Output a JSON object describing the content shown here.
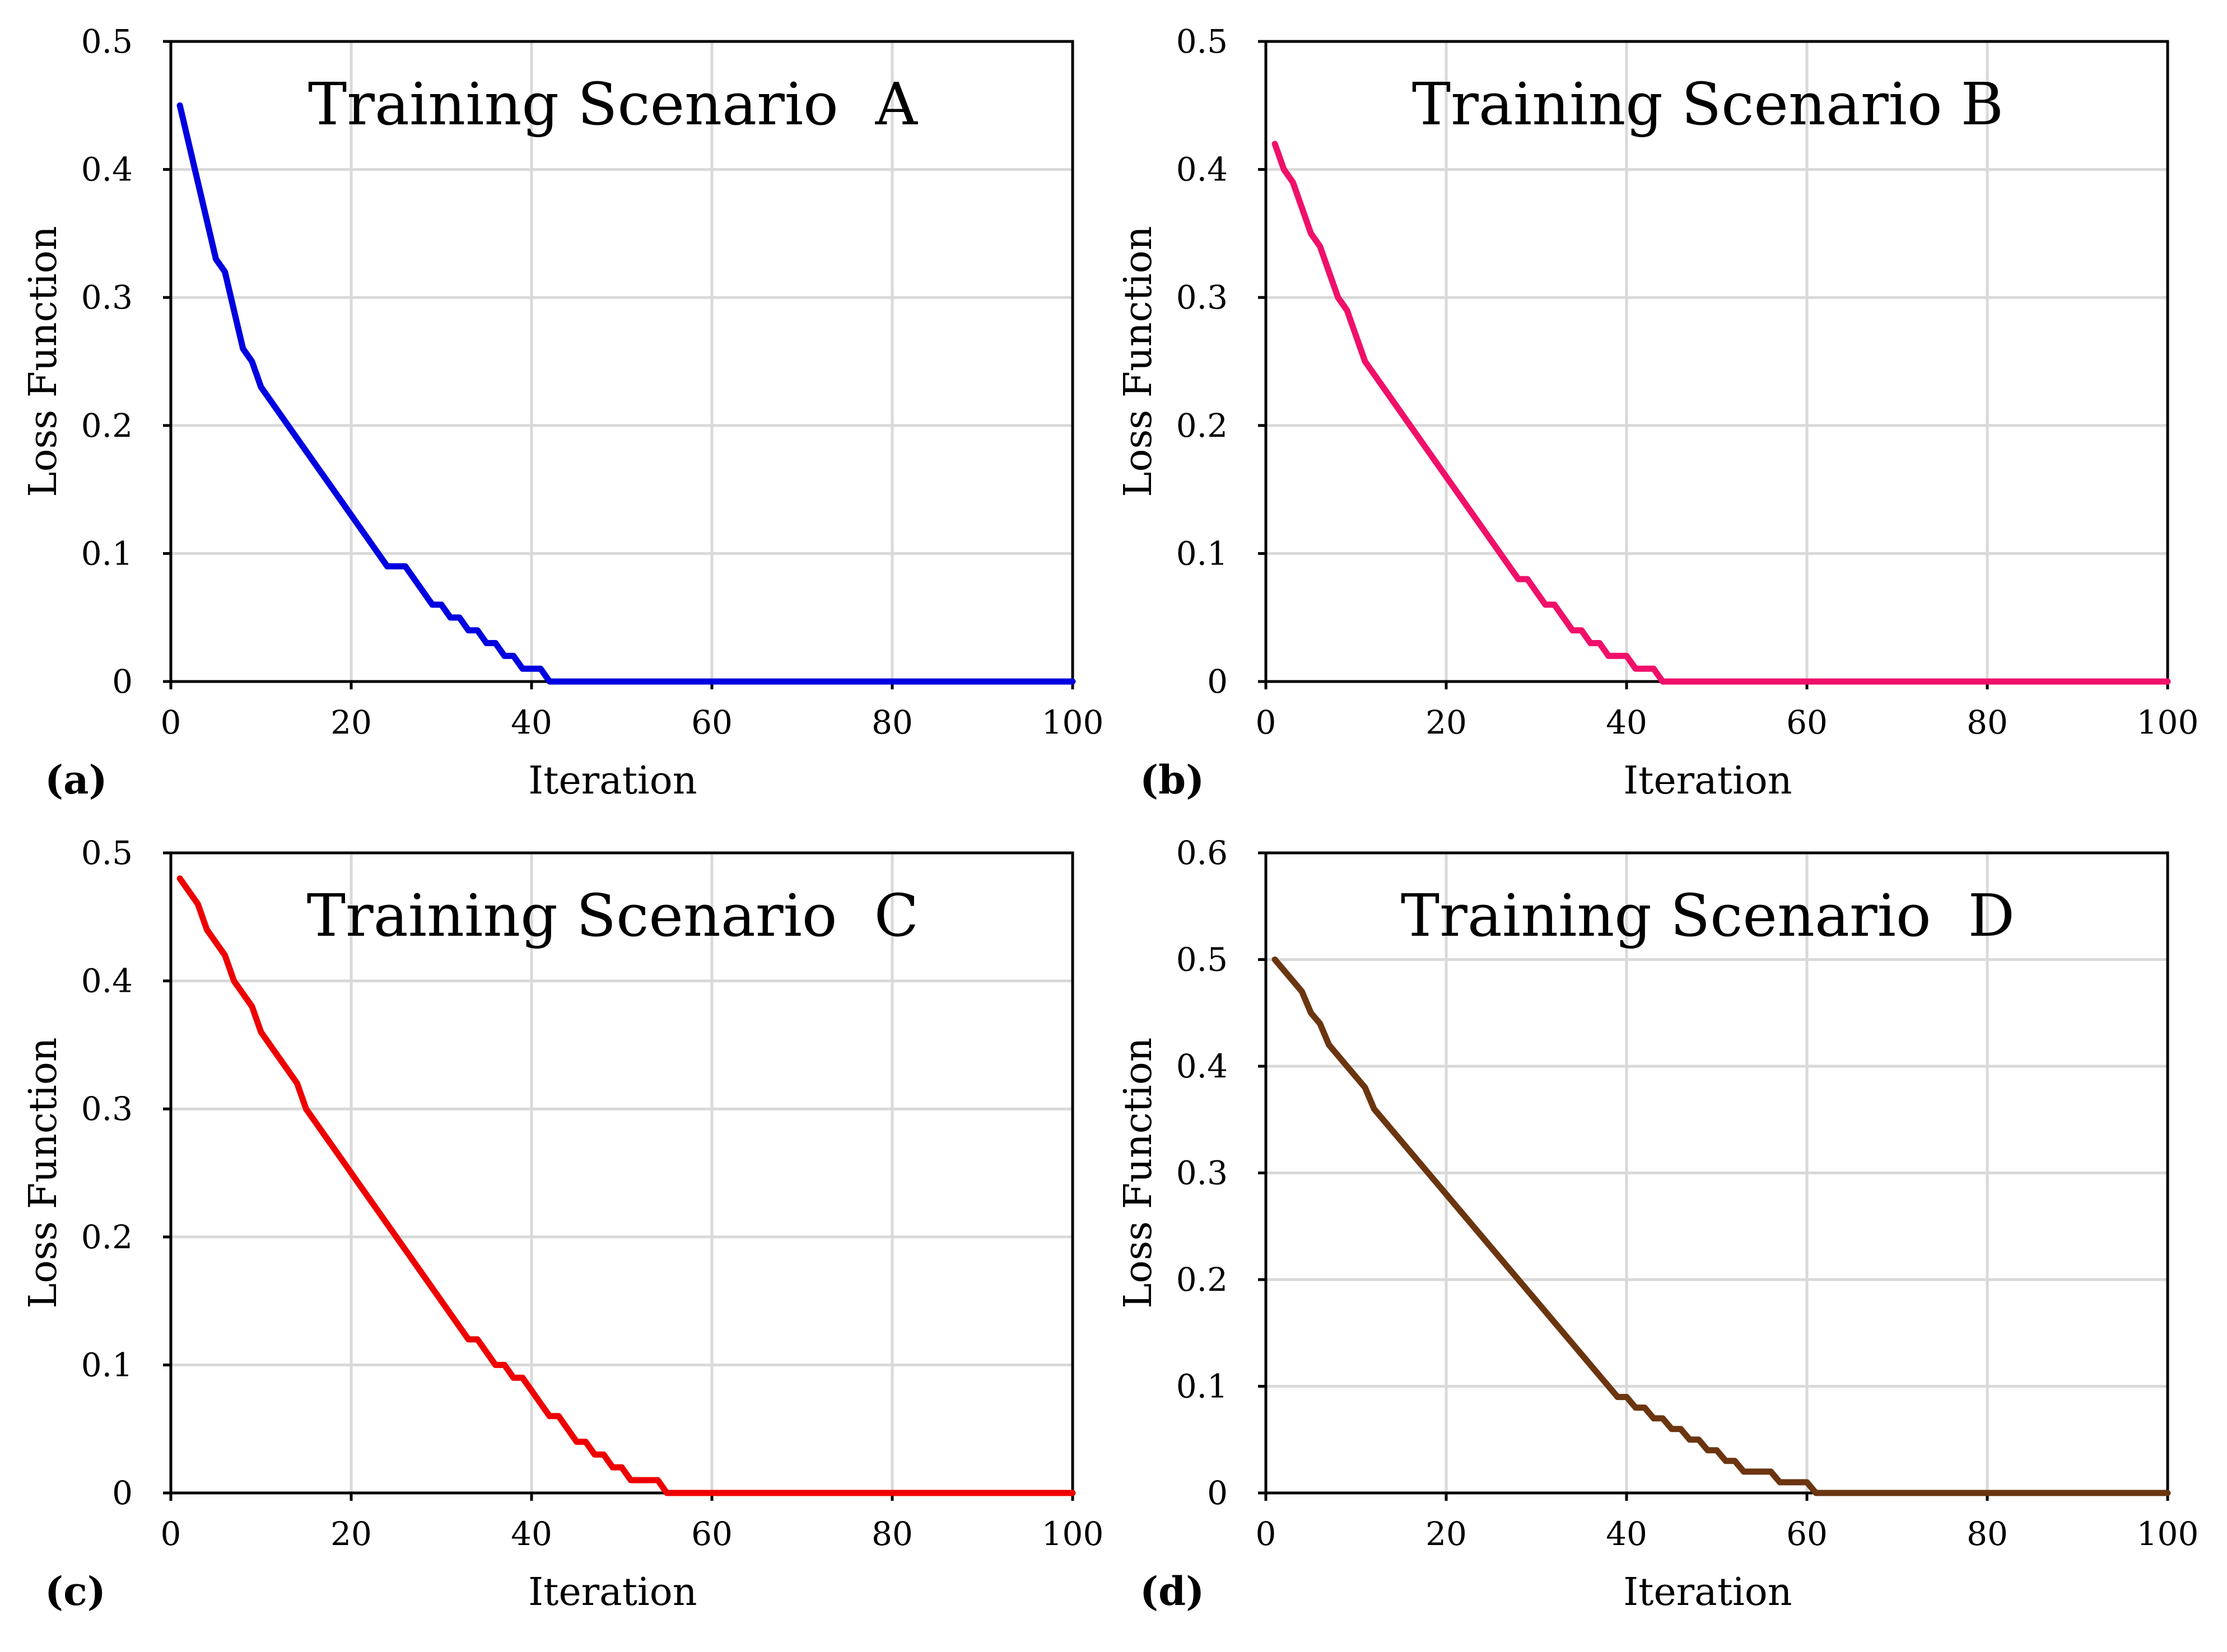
{
  "chart_data": [
    {
      "type": "line",
      "panel_label": "(a)",
      "title": "Training Scenario  A",
      "xlabel": "Iteration",
      "ylabel": "Loss Function",
      "xlim": [
        0,
        100
      ],
      "ylim": [
        0,
        0.5
      ],
      "xticks": [
        0,
        20,
        40,
        60,
        80,
        100
      ],
      "yticks": [
        0,
        0.1,
        0.2,
        0.3,
        0.4,
        0.5
      ],
      "xtick_labels": [
        "0",
        "20",
        "40",
        "60",
        "80",
        "100"
      ],
      "ytick_labels": [
        "0",
        "0.1",
        "0.2",
        "0.3",
        "0.4",
        "0.5"
      ],
      "grid": true,
      "series": [
        {
          "name": "Training Scenario A",
          "color": "#0000e0",
          "x": [
            1,
            2,
            3,
            4,
            5,
            6,
            7,
            8,
            9,
            10,
            11,
            12,
            13,
            14,
            16,
            18,
            20,
            22,
            24,
            26,
            27,
            28,
            29,
            30,
            31,
            32,
            33,
            34,
            35,
            36,
            37,
            38,
            39,
            40,
            41,
            42,
            43,
            44,
            45,
            100
          ],
          "values": [
            0.45,
            0.42,
            0.39,
            0.36,
            0.33,
            0.32,
            0.29,
            0.26,
            0.25,
            0.23,
            0.22,
            0.21,
            0.2,
            0.19,
            0.17,
            0.15,
            0.13,
            0.11,
            0.09,
            0.09,
            0.08,
            0.07,
            0.06,
            0.06,
            0.05,
            0.05,
            0.04,
            0.04,
            0.03,
            0.03,
            0.02,
            0.02,
            0.01,
            0.01,
            0.01,
            0.0,
            0.0,
            0.0,
            0.0,
            0.0
          ]
        }
      ]
    },
    {
      "type": "line",
      "panel_label": "(b)",
      "title": "Training Scenario B",
      "xlabel": "Iteration",
      "ylabel": "Loss Function",
      "xlim": [
        0,
        100
      ],
      "ylim": [
        0,
        0.5
      ],
      "xticks": [
        0,
        20,
        40,
        60,
        80,
        100
      ],
      "yticks": [
        0,
        0.1,
        0.2,
        0.3,
        0.4,
        0.5
      ],
      "xtick_labels": [
        "0",
        "20",
        "40",
        "60",
        "80",
        "100"
      ],
      "ytick_labels": [
        "0",
        "0.1",
        "0.2",
        "0.3",
        "0.4",
        "0.5"
      ],
      "grid": true,
      "series": [
        {
          "name": "Training Scenario B",
          "color": "#f0106a",
          "x": [
            1,
            2,
            3,
            4,
            5,
            6,
            7,
            8,
            9,
            10,
            11,
            13,
            15,
            17,
            19,
            21,
            23,
            25,
            27,
            28,
            29,
            30,
            31,
            32,
            33,
            34,
            35,
            36,
            37,
            38,
            39,
            40,
            41,
            42,
            43,
            44,
            100
          ],
          "values": [
            0.42,
            0.4,
            0.39,
            0.37,
            0.35,
            0.34,
            0.32,
            0.3,
            0.29,
            0.27,
            0.25,
            0.23,
            0.21,
            0.19,
            0.17,
            0.15,
            0.13,
            0.11,
            0.09,
            0.08,
            0.08,
            0.07,
            0.06,
            0.06,
            0.05,
            0.04,
            0.04,
            0.03,
            0.03,
            0.02,
            0.02,
            0.02,
            0.01,
            0.01,
            0.01,
            0.0,
            0.0
          ]
        }
      ]
    },
    {
      "type": "line",
      "panel_label": "(c)",
      "title": "Training Scenario  C",
      "xlabel": "Iteration",
      "ylabel": "Loss Function",
      "xlim": [
        0,
        100
      ],
      "ylim": [
        0,
        0.5
      ],
      "xticks": [
        0,
        20,
        40,
        60,
        80,
        100
      ],
      "yticks": [
        0,
        0.1,
        0.2,
        0.3,
        0.4,
        0.5
      ],
      "xtick_labels": [
        "0",
        "20",
        "40",
        "60",
        "80",
        "100"
      ],
      "ytick_labels": [
        "0",
        "0.1",
        "0.2",
        "0.3",
        "0.4",
        "0.5"
      ],
      "grid": true,
      "series": [
        {
          "name": "Training Scenario C",
          "color": "#ee0000",
          "x": [
            1,
            2,
            3,
            4,
            5,
            6,
            7,
            8,
            9,
            10,
            11,
            12,
            13,
            14,
            15,
            17,
            19,
            21,
            23,
            25,
            27,
            29,
            31,
            33,
            34,
            35,
            36,
            37,
            38,
            39,
            40,
            41,
            42,
            43,
            44,
            45,
            46,
            47,
            48,
            49,
            50,
            51,
            52,
            53,
            54,
            55,
            100
          ],
          "values": [
            0.48,
            0.47,
            0.46,
            0.44,
            0.43,
            0.42,
            0.4,
            0.39,
            0.38,
            0.36,
            0.35,
            0.34,
            0.33,
            0.32,
            0.3,
            0.28,
            0.26,
            0.24,
            0.22,
            0.2,
            0.18,
            0.16,
            0.14,
            0.12,
            0.12,
            0.11,
            0.1,
            0.1,
            0.09,
            0.09,
            0.08,
            0.07,
            0.06,
            0.06,
            0.05,
            0.04,
            0.04,
            0.03,
            0.03,
            0.02,
            0.02,
            0.01,
            0.01,
            0.01,
            0.01,
            0.0,
            0.0
          ]
        }
      ]
    },
    {
      "type": "line",
      "panel_label": "(d)",
      "title": "Training Scenario  D",
      "xlabel": "Iteration",
      "ylabel": "Loss Function",
      "xlim": [
        0,
        100
      ],
      "ylim": [
        0,
        0.6
      ],
      "xticks": [
        0,
        20,
        40,
        60,
        80,
        100
      ],
      "yticks": [
        0,
        0.1,
        0.2,
        0.3,
        0.4,
        0.5,
        0.6
      ],
      "xtick_labels": [
        "0",
        "20",
        "40",
        "60",
        "80",
        "100"
      ],
      "ytick_labels": [
        "0",
        "0.1",
        "0.2",
        "0.3",
        "0.4",
        "0.5",
        "0.6"
      ],
      "grid": true,
      "series": [
        {
          "name": "Training Scenario D",
          "color": "#6b3510",
          "x": [
            1,
            2,
            3,
            4,
            5,
            6,
            7,
            8,
            9,
            10,
            11,
            12,
            14,
            16,
            18,
            20,
            22,
            24,
            26,
            28,
            30,
            32,
            34,
            36,
            38,
            39,
            40,
            41,
            42,
            43,
            44,
            45,
            46,
            47,
            48,
            49,
            50,
            51,
            52,
            53,
            54,
            55,
            56,
            57,
            58,
            59,
            60,
            61,
            100
          ],
          "values": [
            0.5,
            0.49,
            0.48,
            0.47,
            0.45,
            0.44,
            0.42,
            0.41,
            0.4,
            0.39,
            0.38,
            0.36,
            0.34,
            0.32,
            0.3,
            0.28,
            0.26,
            0.24,
            0.22,
            0.2,
            0.18,
            0.16,
            0.14,
            0.12,
            0.1,
            0.09,
            0.09,
            0.08,
            0.08,
            0.07,
            0.07,
            0.06,
            0.06,
            0.05,
            0.05,
            0.04,
            0.04,
            0.03,
            0.03,
            0.02,
            0.02,
            0.02,
            0.02,
            0.01,
            0.01,
            0.01,
            0.01,
            0.0,
            0.0
          ]
        }
      ]
    }
  ]
}
